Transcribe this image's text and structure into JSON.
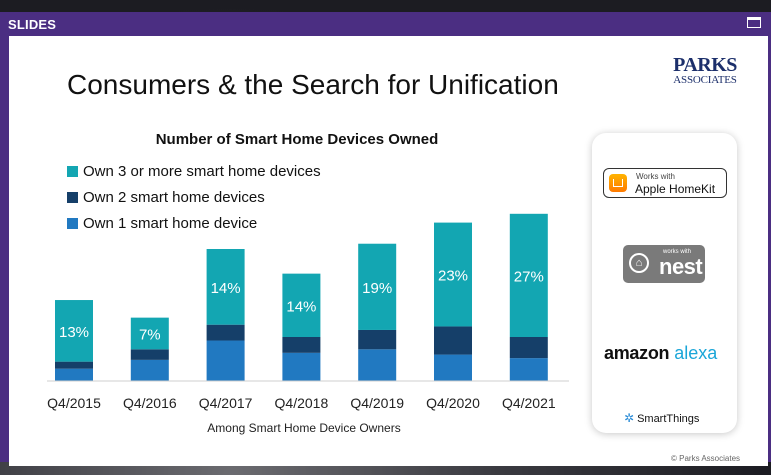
{
  "window": {
    "title": "SLIDES"
  },
  "slide": {
    "title": "Consumers & the Search for Unification",
    "logo": {
      "line1": "PARKS",
      "line2": "ASSOCIATES"
    },
    "copyright": "© Parks Associates",
    "partner_logos": {
      "homekit": {
        "small": "Works with",
        "big": "Apple HomeKit"
      },
      "nest": {
        "small": "works with",
        "big": "nest"
      },
      "alexa": {
        "part1": "amazon",
        "part2": "alexa"
      },
      "smartthings": {
        "label": "SmartThings"
      }
    }
  },
  "colors": {
    "own1": "#2179c1",
    "own2": "#153f69",
    "own3": "#13a6b2",
    "window": "#4b2e82"
  },
  "chart_data": {
    "type": "bar",
    "stacked": true,
    "title": "Number of Smart Home Devices Owned",
    "xlabel": "Among Smart Home Device Owners",
    "ylabel": "",
    "categories": [
      "Q4/2015",
      "Q4/2016",
      "Q4/2017",
      "Q4/2018",
      "Q4/2019",
      "Q4/2020",
      "Q4/2021"
    ],
    "series": [
      {
        "name": "Own 1 smart home device",
        "color": "#2179c1",
        "values": [
          7,
          12,
          23,
          16,
          18,
          15,
          13
        ]
      },
      {
        "name": "Own 2 smart home devices",
        "color": "#153f69",
        "values": [
          4,
          6,
          9,
          9,
          11,
          16,
          12
        ]
      },
      {
        "name": "Own 3 or more smart home devices",
        "color": "#13a6b2",
        "values": [
          35,
          18,
          43,
          36,
          49,
          59,
          70
        ]
      }
    ],
    "data_labels": [
      "13%",
      "7%",
      "14%",
      "14%",
      "19%",
      "23%",
      "27%"
    ],
    "legend_order": [
      "Own 3 or more smart home devices",
      "Own 2 smart home devices",
      "Own 1 smart home device"
    ],
    "legend_position": "top-left"
  }
}
